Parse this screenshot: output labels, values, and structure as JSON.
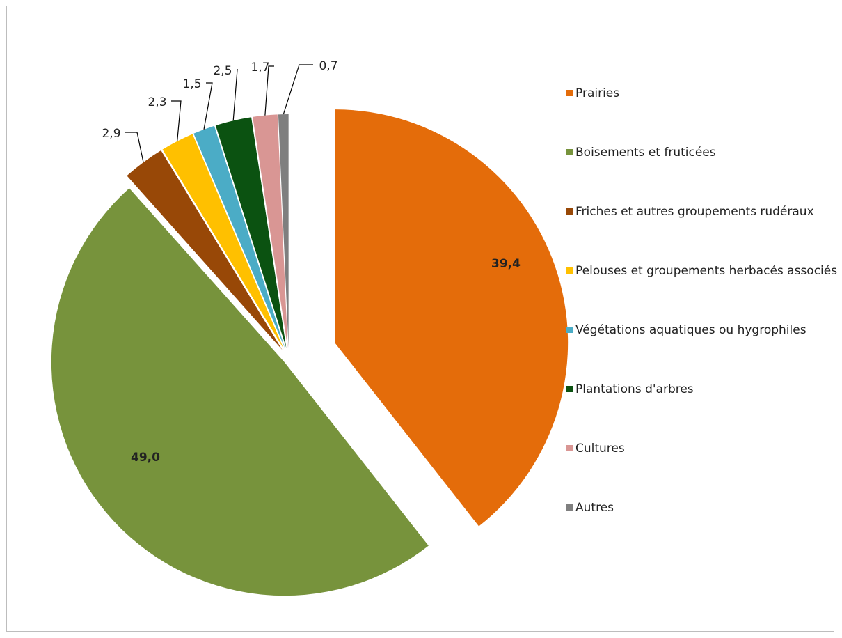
{
  "chart_data": {
    "type": "pie",
    "title": "",
    "value_format": "decimal-comma",
    "slices": [
      {
        "label": "Prairies",
        "value": 39.4,
        "display": "39,4",
        "color": "#E46C0A"
      },
      {
        "label": "Boisements et fruticées",
        "value": 49.0,
        "display": "49,0",
        "color": "#77933C"
      },
      {
        "label": "Friches et autres groupements rudéraux",
        "value": 2.9,
        "display": "2,9",
        "color": "#984807"
      },
      {
        "label": "Pelouses et groupements herbacés associés",
        "value": 2.3,
        "display": "2,3",
        "color": "#FFC000"
      },
      {
        "label": "Végétations aquatiques ou hygrophiles",
        "value": 1.5,
        "display": "1,5",
        "color": "#4BACC6"
      },
      {
        "label": "Plantations d'arbres",
        "value": 2.5,
        "display": "2,5",
        "color": "#0B5211"
      },
      {
        "label": "Cultures",
        "value": 1.7,
        "display": "1,7",
        "color": "#D99694"
      },
      {
        "label": "Autres",
        "value": 0.7,
        "display": "0,7",
        "color": "#7F7F7F"
      }
    ],
    "legend_position": "right"
  }
}
